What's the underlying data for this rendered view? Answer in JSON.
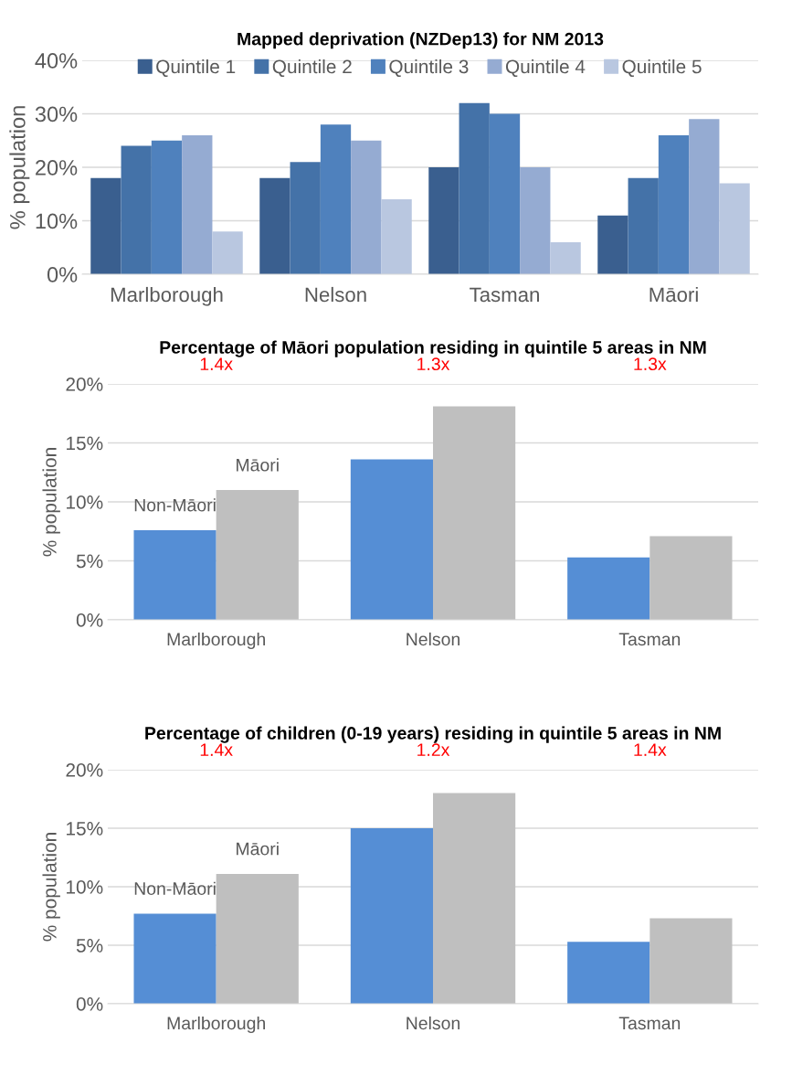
{
  "chart_data": [
    {
      "type": "bar",
      "title": "Mapped deprivation (NZDep13) for NM 2013",
      "ylabel": "% population",
      "categories": [
        "Marlborough",
        "Nelson",
        "Tasman",
        "Māori"
      ],
      "series": [
        {
          "name": "Quintile 1",
          "color": "#3a5f8f",
          "values": [
            18,
            18,
            20,
            11
          ]
        },
        {
          "name": "Quintile 2",
          "color": "#4472a8",
          "values": [
            24,
            21,
            32,
            18
          ]
        },
        {
          "name": "Quintile 3",
          "color": "#4f81bd",
          "values": [
            25,
            28,
            30,
            26
          ]
        },
        {
          "name": "Quintile 4",
          "color": "#95abd2",
          "values": [
            26,
            25,
            20,
            29
          ]
        },
        {
          "name": "Quintile 5",
          "color": "#b9c7e0",
          "values": [
            8,
            14,
            6,
            17
          ]
        }
      ],
      "ylim": [
        0,
        40
      ],
      "yticks": [
        {
          "value": 0,
          "label": "0%"
        },
        {
          "value": 10,
          "label": "10%"
        },
        {
          "value": 20,
          "label": "20%"
        },
        {
          "value": 30,
          "label": "30%"
        },
        {
          "value": 40,
          "label": "40%"
        }
      ],
      "grid": "y",
      "legend": "top"
    },
    {
      "type": "bar",
      "title": "Percentage of Māori population residing in quintile 5 areas in NM",
      "ylabel": "% population",
      "categories": [
        "Marlborough",
        "Nelson",
        "Tasman"
      ],
      "series": [
        {
          "name": "Non-Māori",
          "color": "#558ed5",
          "values": [
            7.6,
            13.6,
            5.3
          ]
        },
        {
          "name": "Māori",
          "color": "#bfbfbf",
          "values": [
            11.0,
            18.1,
            7.1
          ]
        }
      ],
      "ylim": [
        0,
        20
      ],
      "yticks": [
        {
          "value": 0,
          "label": "0%"
        },
        {
          "value": 5,
          "label": "5%"
        },
        {
          "value": 10,
          "label": "10%"
        },
        {
          "value": 15,
          "label": "15%"
        },
        {
          "value": 20,
          "label": "20%"
        }
      ],
      "grid": "y",
      "annotations": [
        "1.4x",
        "1.3x",
        "1.3x"
      ]
    },
    {
      "type": "bar",
      "title": "Percentage of children (0-19 years) residing in quintile 5 areas in NM",
      "ylabel": "% population",
      "categories": [
        "Marlborough",
        "Nelson",
        "Tasman"
      ],
      "series": [
        {
          "name": "Non-Māori",
          "color": "#558ed5",
          "values": [
            7.7,
            15.0,
            5.3
          ]
        },
        {
          "name": "Māori",
          "color": "#bfbfbf",
          "values": [
            11.1,
            18.0,
            7.3
          ]
        }
      ],
      "ylim": [
        0,
        20
      ],
      "yticks": [
        {
          "value": 0,
          "label": "0%"
        },
        {
          "value": 5,
          "label": "5%"
        },
        {
          "value": 10,
          "label": "10%"
        },
        {
          "value": 15,
          "label": "15%"
        },
        {
          "value": 20,
          "label": "20%"
        }
      ],
      "grid": "y",
      "annotations": [
        "1.4x",
        "1.2x",
        "1.4x"
      ]
    }
  ]
}
